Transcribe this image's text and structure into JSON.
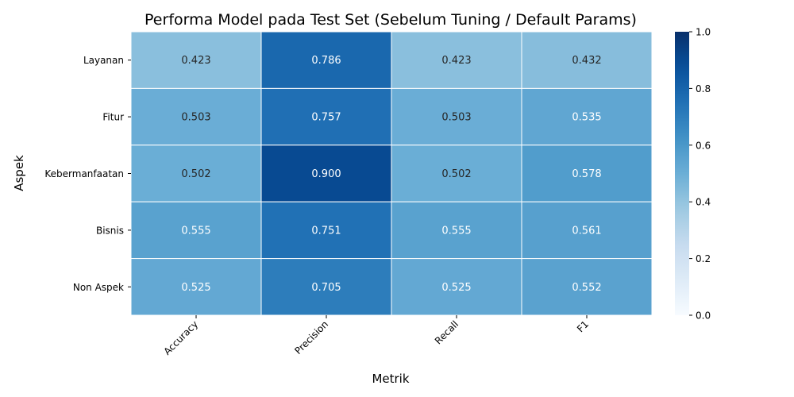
{
  "chart_data": {
    "type": "heatmap",
    "title": "Performa Model pada Test Set (Sebelum Tuning / Default Params)",
    "xlabel": "Metrik",
    "ylabel": "Aspek",
    "x_categories": [
      "Accuracy",
      "Precision",
      "Recall",
      "F1"
    ],
    "y_categories": [
      "Layanan",
      "Fitur",
      "Kebermanfaatan",
      "Bisnis",
      "Non Aspek"
    ],
    "values": [
      [
        0.423,
        0.786,
        0.423,
        0.432
      ],
      [
        0.503,
        0.757,
        0.503,
        0.535
      ],
      [
        0.502,
        0.9,
        0.502,
        0.578
      ],
      [
        0.555,
        0.751,
        0.555,
        0.561
      ],
      [
        0.525,
        0.705,
        0.525,
        0.552
      ]
    ],
    "value_labels": [
      [
        "0.423",
        "0.786",
        "0.423",
        "0.432"
      ],
      [
        "0.503",
        "0.757",
        "0.503",
        "0.535"
      ],
      [
        "0.502",
        "0.900",
        "0.502",
        "0.578"
      ],
      [
        "0.555",
        "0.751",
        "0.555",
        "0.561"
      ],
      [
        "0.525",
        "0.705",
        "0.525",
        "0.552"
      ]
    ],
    "colorbar": {
      "range": [
        0,
        1
      ],
      "ticks": [
        "0.0",
        "0.2",
        "0.4",
        "0.6",
        "0.8",
        "1.0"
      ],
      "colormap": "Blues"
    },
    "grid": false
  }
}
